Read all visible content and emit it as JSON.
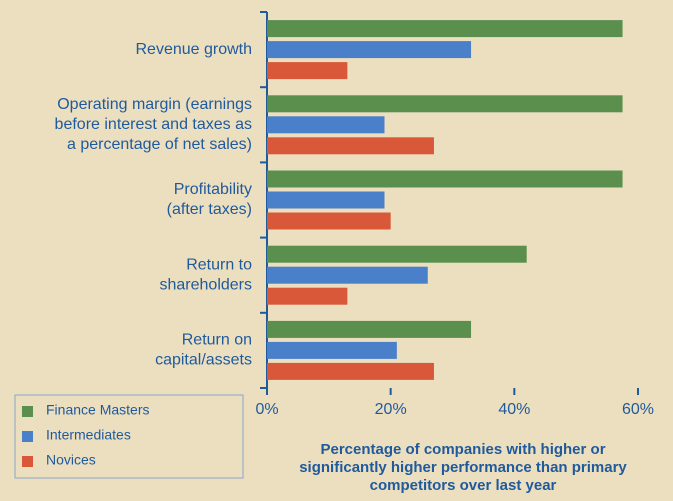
{
  "chart_data": {
    "type": "bar",
    "orientation": "horizontal",
    "categories": [
      [
        "Revenue growth"
      ],
      [
        "Operating margin (earnings",
        "before interest and taxes as",
        "a percentage of net sales)"
      ],
      [
        "Profitability",
        "(after taxes)"
      ],
      [
        "Return to",
        "shareholders"
      ],
      [
        "Return on",
        "capital/assets"
      ]
    ],
    "series": [
      {
        "name": "Finance Masters",
        "color": "#5a8f4e",
        "values": [
          57.5,
          57.5,
          57.5,
          42,
          33
        ]
      },
      {
        "name": "Intermediates",
        "color": "#4a7fc9",
        "values": [
          33,
          19,
          19,
          26,
          21
        ]
      },
      {
        "name": "Novices",
        "color": "#d9583a",
        "values": [
          13,
          27,
          20,
          13,
          27
        ]
      }
    ],
    "xlim": [
      0,
      60
    ],
    "xticks": [
      {
        "value": 0,
        "label": "0%"
      },
      {
        "value": 20,
        "label": "20%"
      },
      {
        "value": 40,
        "label": "40%"
      },
      {
        "value": 60,
        "label": "60%"
      }
    ],
    "xlabel": [
      "Percentage of companies with higher or",
      "significantly higher performance than primary",
      "competitors over last year"
    ],
    "legend": "bottom-left"
  }
}
